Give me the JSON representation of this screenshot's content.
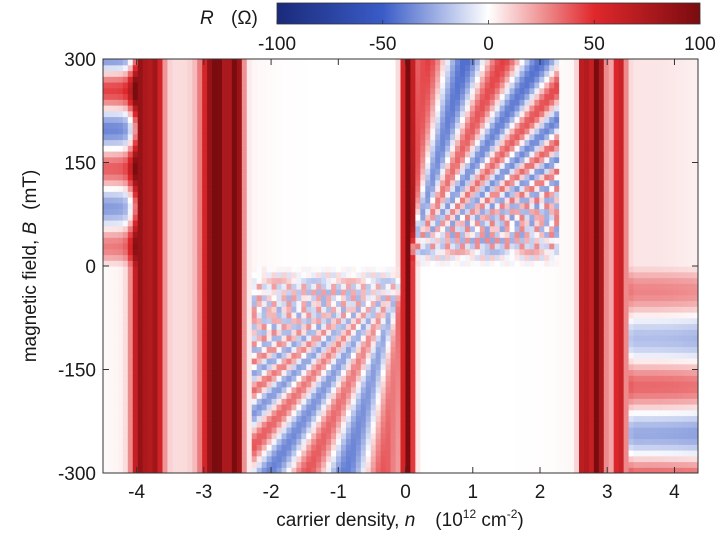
{
  "chart_data": {
    "type": "heatmap",
    "title": "",
    "xlabel": {
      "prefix": "carrier density, ",
      "symbol": "n",
      "unit_open": "(10",
      "unit_exp": "12",
      "unit_mid": " cm",
      "unit_exp2": "-2",
      "unit_close": ")"
    },
    "ylabel": {
      "prefix": "magnetic field, ",
      "symbol": "B",
      "unit": "(mT)"
    },
    "xlim": [
      -4.5,
      4.35
    ],
    "ylim": [
      -300,
      300
    ],
    "xticks": [
      -4,
      -3,
      -2,
      -1,
      0,
      1,
      2,
      3,
      4
    ],
    "xtick_labels": [
      "-4",
      "-3",
      "-2",
      "-1",
      "0",
      "1",
      "2",
      "3",
      "4"
    ],
    "yticks": [
      300,
      150,
      0,
      -150,
      -300
    ],
    "ytick_labels": [
      "300",
      "150",
      "0",
      "-150",
      "-300"
    ],
    "colorbar": {
      "label_symbol": "R",
      "label_unit": "(Ω)",
      "range": [
        -100,
        100
      ],
      "ticks": [
        -100,
        -50,
        0,
        50,
        100
      ],
      "tick_labels": [
        "-100",
        "-50",
        "0",
        "50",
        "100"
      ],
      "colors": [
        "#1a2a7a",
        "#3a5cc8",
        "#ffffff",
        "#e0282c",
        "#7a0b0f"
      ]
    },
    "features": {
      "peaks": [
        {
          "n": -3.95,
          "width": 0.13,
          "R": 80
        },
        {
          "n": -3.72,
          "width": 0.12,
          "R": 70
        },
        {
          "n": -2.82,
          "width": 0.2,
          "R": 100
        },
        {
          "n": -2.52,
          "width": 0.1,
          "R": 95
        },
        {
          "n": 0.03,
          "width": 0.09,
          "R": 100
        },
        {
          "n": 2.65,
          "width": 0.07,
          "R": 80
        },
        {
          "n": 2.85,
          "width": 0.11,
          "R": 100
        },
        {
          "n": 3.18,
          "width": 0.1,
          "R": 60
        }
      ],
      "oscillation_regions": [
        {
          "n_range": [
            0.1,
            2.3
          ],
          "B_range": [
            0,
            300
          ]
        },
        {
          "n_range": [
            -2.3,
            -0.1
          ],
          "B_range": [
            -300,
            0
          ]
        },
        {
          "n_range": [
            -4.5,
            -4.0
          ],
          "B_range": [
            0,
            300
          ]
        },
        {
          "n_range": [
            3.3,
            4.35
          ],
          "B_range": [
            -300,
            0
          ]
        }
      ]
    }
  }
}
